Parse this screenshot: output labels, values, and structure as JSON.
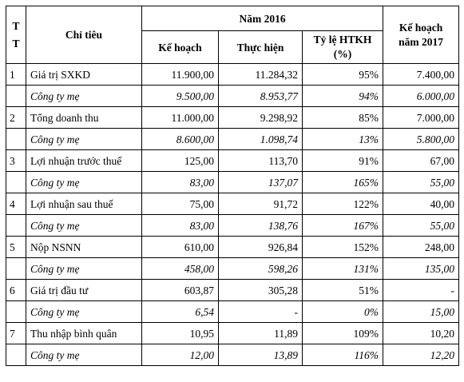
{
  "headers": {
    "tt": "T T",
    "chi_tieu": "Chỉ tiêu",
    "nam_2016": "Năm 2016",
    "ke_hoach": "Kế hoạch",
    "thuc_hien": "Thực hiện",
    "ty_le": "Tỷ lệ HTKH (%)",
    "ke_hoach_2017": "Kế hoạch năm 2017"
  },
  "rows": [
    {
      "tt": "1",
      "name": "Giá trị SXKD",
      "kh": "11.900,00",
      "th": "11.284,32",
      "tl": "95%",
      "kh2017": "7.400,00"
    },
    {
      "tt": "",
      "name": "Công ty mẹ",
      "kh": "9.500,00",
      "th": "8.953,77",
      "tl": "94%",
      "kh2017": "6.000,00"
    },
    {
      "tt": "2",
      "name": "Tổng doanh thu",
      "kh": "11.000,00",
      "th": "9.298,92",
      "tl": "85%",
      "kh2017": "7.000,00"
    },
    {
      "tt": "",
      "name": "Công ty mẹ",
      "kh": "8.600,00",
      "th": "1.098,74",
      "tl": "13%",
      "kh2017": "5.800,00"
    },
    {
      "tt": "3",
      "name": "Lợi nhuận trước thuế",
      "kh": "125,00",
      "th": "113,70",
      "tl": "91%",
      "kh2017": "67,00"
    },
    {
      "tt": "",
      "name": "Công ty mẹ",
      "kh": "83,00",
      "th": "137,07",
      "tl": "165%",
      "kh2017": "55,00"
    },
    {
      "tt": "4",
      "name": "Lợi nhuận sau thuế",
      "kh": "75,00",
      "th": "91,72",
      "tl": "122%",
      "kh2017": "40,00"
    },
    {
      "tt": "",
      "name": "Công ty mẹ",
      "kh": "83,00",
      "th": "138,76",
      "tl": "167%",
      "kh2017": "55,00"
    },
    {
      "tt": "5",
      "name": "Nộp NSNN",
      "kh": "610,00",
      "th": "926,84",
      "tl": "152%",
      "kh2017": "248,00"
    },
    {
      "tt": "",
      "name": "Công ty mẹ",
      "kh": "458,00",
      "th": "598,26",
      "tl": "131%",
      "kh2017": "135,00"
    },
    {
      "tt": "6",
      "name": "Giá trị đầu tư",
      "kh": "603,87",
      "th": "305,28",
      "tl": "51%",
      "kh2017": "-"
    },
    {
      "tt": "",
      "name": "Công ty mẹ",
      "kh": "6,54",
      "th": "-",
      "tl": "0%",
      "kh2017": "15,00"
    },
    {
      "tt": "7",
      "name": "Thu nhập bình quân",
      "kh": "10,95",
      "th": "11,89",
      "tl": "109%",
      "kh2017": "10,20"
    },
    {
      "tt": "",
      "name": "Công ty mẹ",
      "kh": "12,00",
      "th": "13,89",
      "tl": "116%",
      "kh2017": "12,20"
    }
  ]
}
